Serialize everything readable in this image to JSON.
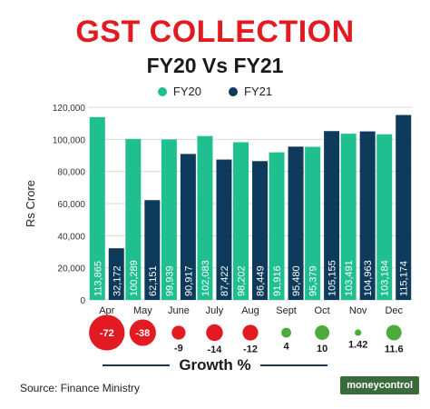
{
  "header": {
    "title": "GST COLLECTION",
    "subtitle": "FY20 Vs FY21"
  },
  "colors": {
    "title": "#e21b22",
    "fy20": "#1fbf8f",
    "fy21": "#0e3a5b",
    "growth_negative": "#e21b22",
    "growth_positive": "#4cab3a"
  },
  "growth_title": "Growth %",
  "source": "Source: Finance Ministry",
  "logo_text": "moneycontrol",
  "chart_data": {
    "type": "bar",
    "title": "GST COLLECTION",
    "subtitle": "FY20 Vs FY21",
    "ylabel": "Rs Crore",
    "xlabel": "",
    "ylim": [
      0,
      120000
    ],
    "yticks": [
      "0",
      "20,000",
      "40,000",
      "60,000",
      "80,000",
      "100,000",
      "120,000"
    ],
    "ytick_values": [
      0,
      20000,
      40000,
      60000,
      80000,
      100000,
      120000
    ],
    "grid": true,
    "legend_position": "top-center",
    "categories": [
      "Apr",
      "May",
      "June",
      "July",
      "Aug",
      "Sept",
      "Oct",
      "Nov",
      "Dec"
    ],
    "series": [
      {
        "name": "FY20",
        "values": [
          113865,
          100289,
          99939,
          102083,
          98202,
          91916,
          95379,
          103491,
          103184
        ],
        "labels": [
          "113,865",
          "100,289",
          "99,939",
          "102,083",
          "98,202",
          "91,916",
          "95,379",
          "103,491",
          "103,184"
        ]
      },
      {
        "name": "FY21",
        "values": [
          32172,
          62151,
          90917,
          87422,
          86449,
          95480,
          105155,
          104963,
          115174
        ],
        "labels": [
          "32,172",
          "62,151",
          "90,917",
          "87,422",
          "86,449",
          "95,480",
          "105,155",
          "104,963",
          "115,174"
        ]
      }
    ],
    "growth": {
      "values": [
        -72,
        -38,
        -9,
        -14,
        -12,
        4,
        10,
        1.42,
        11.6
      ],
      "labels": [
        "-72",
        "-38",
        "-9",
        "-14",
        "-12",
        "4",
        "10",
        "1.42",
        "11.6"
      ]
    }
  }
}
